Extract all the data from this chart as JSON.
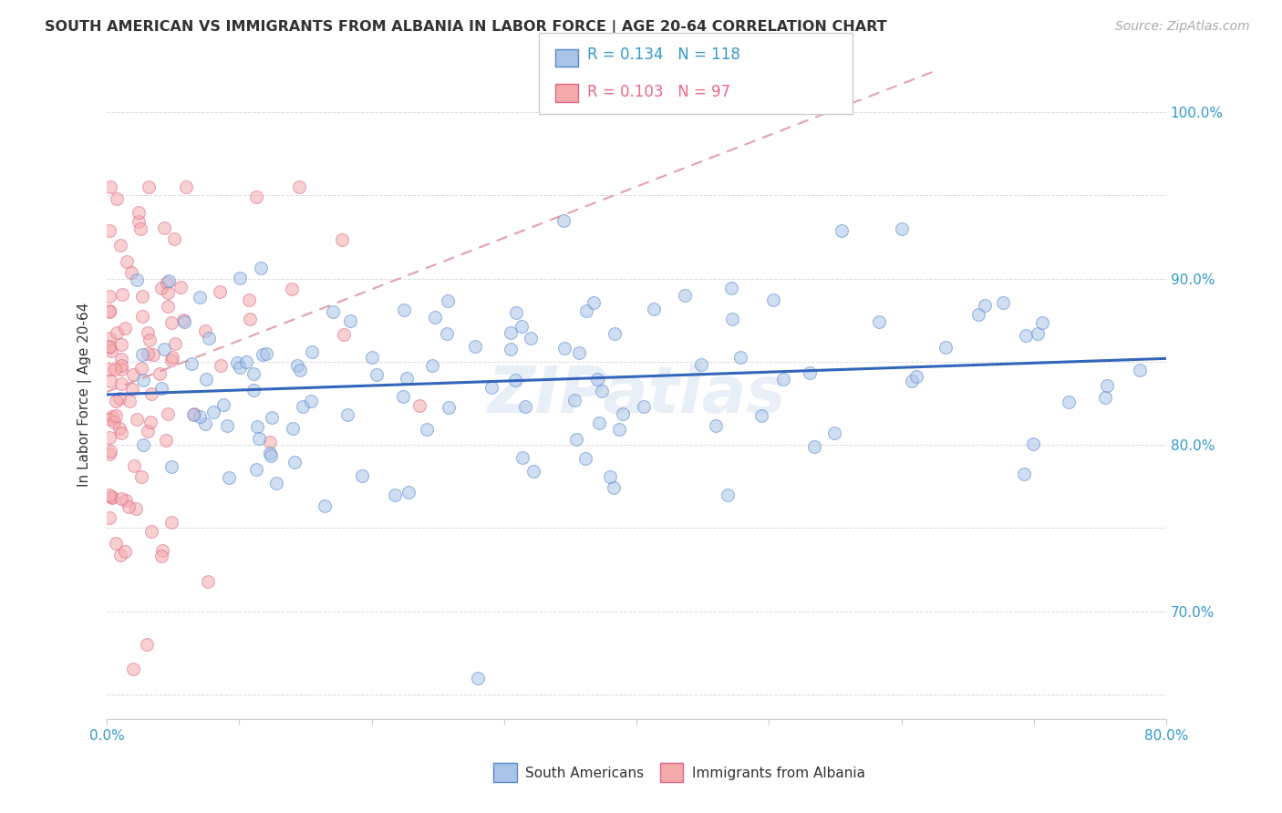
{
  "title": "SOUTH AMERICAN VS IMMIGRANTS FROM ALBANIA IN LABOR FORCE | AGE 20-64 CORRELATION CHART",
  "source_text": "Source: ZipAtlas.com",
  "ylabel": "In Labor Force | Age 20-64",
  "xlim": [
    0.0,
    0.8
  ],
  "ylim": [
    0.635,
    1.025
  ],
  "xtick_positions": [
    0.0,
    0.1,
    0.2,
    0.3,
    0.4,
    0.5,
    0.6,
    0.7,
    0.8
  ],
  "xticklabels": [
    "0.0%",
    "",
    "",
    "",
    "",
    "",
    "",
    "",
    "80.0%"
  ],
  "ytick_positions": [
    0.65,
    0.7,
    0.75,
    0.8,
    0.85,
    0.9,
    0.95,
    1.0
  ],
  "yticklabels": [
    "",
    "70.0%",
    "",
    "80.0%",
    "",
    "90.0%",
    "",
    "100.0%"
  ],
  "blue_fill": "#AAC4E8",
  "blue_edge": "#5588CC",
  "pink_fill": "#F4AAAA",
  "pink_edge": "#DD6688",
  "blue_line_color": "#3366BB",
  "pink_line_color": "#DD8899",
  "legend_blue_R": "0.134",
  "legend_blue_N": "118",
  "legend_pink_R": "0.103",
  "legend_pink_N": "97",
  "legend_label_blue": "South Americans",
  "legend_label_pink": "Immigrants from Albania",
  "watermark": "ZIPatlas",
  "marker_size": 100,
  "marker_alpha": 0.55,
  "grid_color": "#CCCCCC",
  "tick_color": "#3399CC",
  "title_color": "#333333",
  "ylabel_color": "#333333",
  "source_color": "#AAAAAA"
}
